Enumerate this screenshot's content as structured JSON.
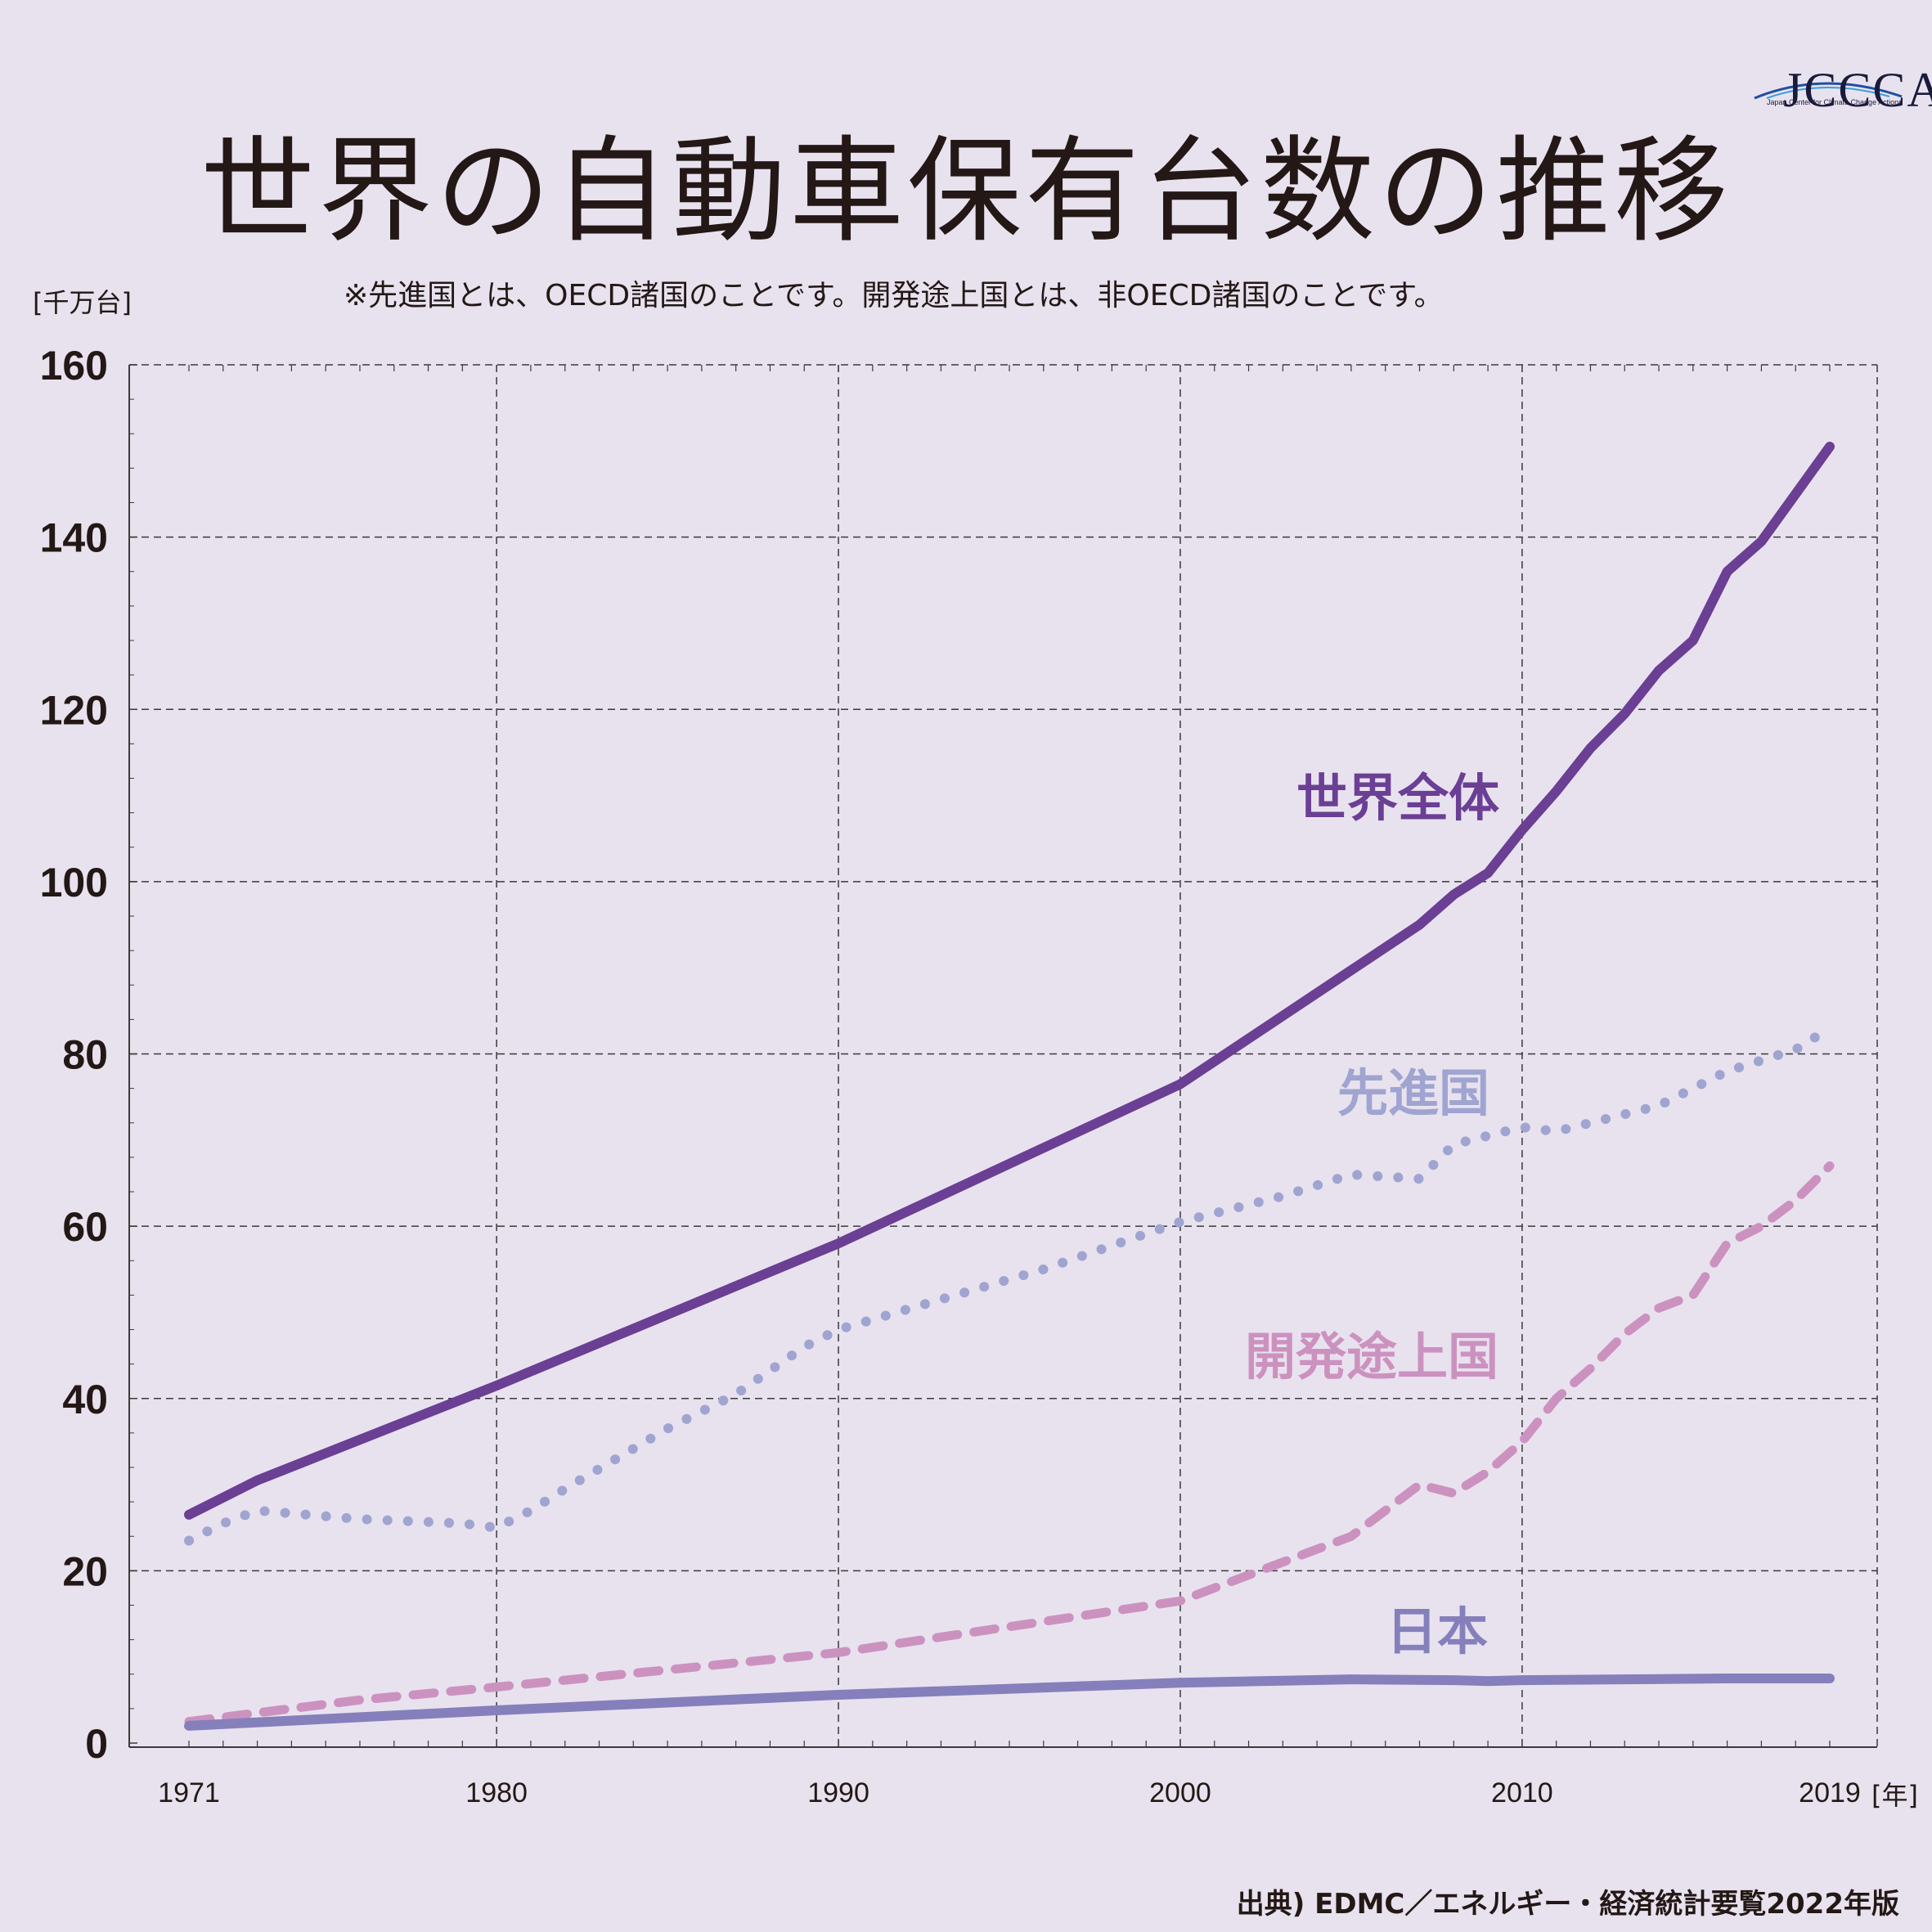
{
  "logo": {
    "mark": "JCCCA",
    "sub": "Japan Center for Climate Change Actions"
  },
  "title": "世界の自動車保有台数の推移",
  "note": "※先進国とは、OECD諸国のことです。開発途上国とは、非OECD諸国のことです。",
  "unit_y": "[千万台]",
  "unit_x": "[年]",
  "source": "出典) EDMC／エネルギー・経済統計要覧2022年版",
  "colors": {
    "background": "#e8e2ef",
    "world": "#6a3f94",
    "developed": "#a0a4d0",
    "developing": "#cc92bf",
    "japan": "#8580bb",
    "grid": "#3a3a3a"
  },
  "chart_data": {
    "type": "line",
    "title": "世界の自動車保有台数の推移",
    "xlabel": "[年]",
    "ylabel": "[千万台]",
    "xlim": [
      1971,
      2019
    ],
    "ylim": [
      0,
      160
    ],
    "y_ticks": [
      0,
      20,
      40,
      60,
      80,
      100,
      120,
      140,
      160
    ],
    "x_ticks": [
      1971,
      1980,
      1990,
      2000,
      2010,
      2019
    ],
    "x_grid": [
      1980,
      1990,
      2000,
      2010
    ],
    "grid": true,
    "series": [
      {
        "name": "世界全体",
        "style": "solid",
        "points": [
          [
            1971,
            26.5
          ],
          [
            1973,
            30.5
          ],
          [
            1980,
            41.5
          ],
          [
            1990,
            58.0
          ],
          [
            2000,
            76.5
          ],
          [
            2007,
            95.0
          ],
          [
            2008,
            98.5
          ],
          [
            2009,
            101.0
          ],
          [
            2010,
            106.0
          ],
          [
            2011,
            110.5
          ],
          [
            2012,
            115.5
          ],
          [
            2013,
            119.5
          ],
          [
            2014,
            124.5
          ],
          [
            2015,
            128.0
          ],
          [
            2016,
            136.0
          ],
          [
            2017,
            139.5
          ],
          [
            2018,
            145.0
          ],
          [
            2019,
            150.5
          ]
        ]
      },
      {
        "name": "先進国",
        "style": "dotted",
        "points": [
          [
            1971,
            23.5
          ],
          [
            1972,
            25.5
          ],
          [
            1973,
            27.0
          ],
          [
            1976,
            26.0
          ],
          [
            1979,
            25.5
          ],
          [
            1980,
            25.0
          ],
          [
            1981,
            27.0
          ],
          [
            1982,
            29.5
          ],
          [
            1985,
            36.5
          ],
          [
            1987,
            40.5
          ],
          [
            1989,
            46.0
          ],
          [
            1990,
            48.0
          ],
          [
            1993,
            51.5
          ],
          [
            1996,
            55.0
          ],
          [
            2000,
            60.5
          ],
          [
            2003,
            63.5
          ],
          [
            2005,
            66.0
          ],
          [
            2007,
            65.5
          ],
          [
            2008,
            69.5
          ],
          [
            2010,
            71.5
          ],
          [
            2011,
            71.0
          ],
          [
            2013,
            73.0
          ],
          [
            2014,
            74.0
          ],
          [
            2015,
            76.0
          ],
          [
            2016,
            78.0
          ],
          [
            2018,
            80.5
          ],
          [
            2019,
            83.0
          ]
        ]
      },
      {
        "name": "開発途上国",
        "style": "dashed",
        "points": [
          [
            1971,
            2.5
          ],
          [
            1973,
            3.5
          ],
          [
            1976,
            5.0
          ],
          [
            1980,
            6.5
          ],
          [
            1985,
            8.5
          ],
          [
            1990,
            10.5
          ],
          [
            1995,
            13.5
          ],
          [
            2000,
            16.5
          ],
          [
            2003,
            21.0
          ],
          [
            2005,
            24.0
          ],
          [
            2007,
            30.0
          ],
          [
            2008,
            29.0
          ],
          [
            2009,
            31.5
          ],
          [
            2010,
            35.0
          ],
          [
            2011,
            40.0
          ],
          [
            2012,
            43.5
          ],
          [
            2013,
            47.5
          ],
          [
            2014,
            50.5
          ],
          [
            2015,
            52.0
          ],
          [
            2016,
            58.0
          ],
          [
            2017,
            60.0
          ],
          [
            2018,
            63.0
          ],
          [
            2019,
            67.0
          ]
        ]
      },
      {
        "name": "日本",
        "style": "solid",
        "points": [
          [
            1971,
            2.0
          ],
          [
            1980,
            3.8
          ],
          [
            1990,
            5.6
          ],
          [
            2000,
            7.0
          ],
          [
            2005,
            7.4
          ],
          [
            2008,
            7.3
          ],
          [
            2009,
            7.2
          ],
          [
            2010,
            7.3
          ],
          [
            2013,
            7.4
          ],
          [
            2016,
            7.5
          ],
          [
            2019,
            7.5
          ]
        ]
      }
    ]
  }
}
